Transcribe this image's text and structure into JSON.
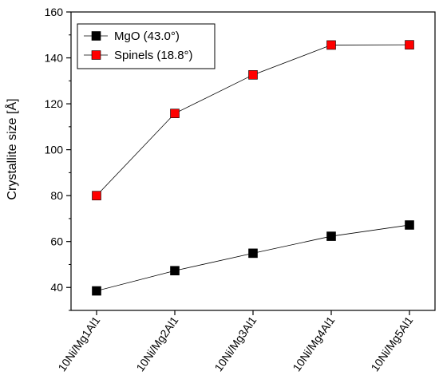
{
  "chart_data": {
    "type": "line",
    "categories": [
      "10Ni/Mg1Al1",
      "10Ni/Mg2Al1",
      "10Ni/Mg3Al1",
      "10Ni/Mg4Al1",
      "10Ni/Mg5Al1"
    ],
    "series": [
      {
        "name": "MgO (43.0°)",
        "color": "#000000",
        "values": [
          38.5,
          47.3,
          54.9,
          62.3,
          67.2
        ]
      },
      {
        "name": "Spinels (18.8°)",
        "color": "#ff0000",
        "values": [
          80.0,
          115.8,
          132.6,
          145.6,
          145.7
        ]
      }
    ],
    "title": "",
    "xlabel": "",
    "ylabel": "Crystallite size [Å]",
    "ylim": [
      30,
      160
    ],
    "yticks": [
      40,
      60,
      80,
      100,
      120,
      140,
      160
    ],
    "grid": false,
    "legend_position": "top-left",
    "marker": "square"
  }
}
